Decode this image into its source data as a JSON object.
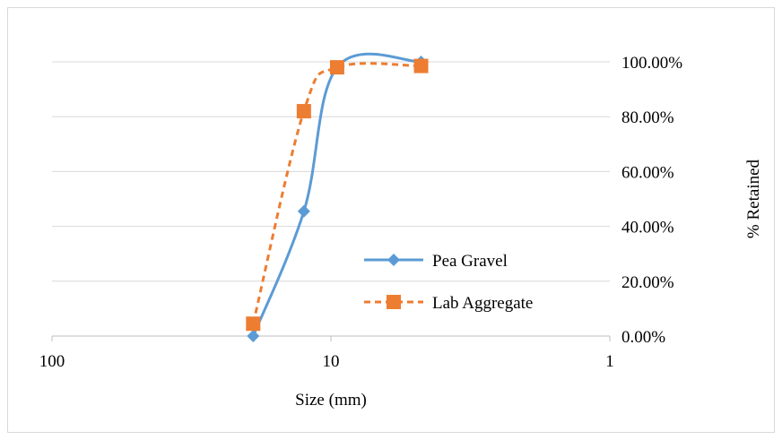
{
  "chart_data": {
    "type": "line",
    "xlabel": "Size (mm)",
    "ylabel": "% Retained",
    "x_scale": "log",
    "x_reversed": true,
    "xlim": [
      100,
      1
    ],
    "ylim": [
      0,
      1
    ],
    "x_ticks": [
      {
        "value": 100,
        "label": "100"
      },
      {
        "value": 10,
        "label": "10"
      },
      {
        "value": 1,
        "label": "1"
      }
    ],
    "y_ticks": [
      {
        "value": 0.0,
        "label": "0.00%"
      },
      {
        "value": 0.2,
        "label": "20.00%"
      },
      {
        "value": 0.4,
        "label": "40.00%"
      },
      {
        "value": 0.6,
        "label": "60.00%"
      },
      {
        "value": 0.8,
        "label": "80.00%"
      },
      {
        "value": 1.0,
        "label": "100.00%"
      }
    ],
    "y_axis_side": "right",
    "grid": {
      "horizontal": true,
      "vertical": false
    },
    "legend_position": "lower-right inside",
    "series": [
      {
        "name": "Pea Gravel",
        "color": "#5b9bd5",
        "line_style": "solid",
        "marker": "diamond",
        "smooth": true,
        "points": [
          {
            "x": 19,
            "y": 0.0
          },
          {
            "x": 12.5,
            "y": 0.455
          },
          {
            "x": 9.5,
            "y": 0.98
          },
          {
            "x": 4.75,
            "y": 1.0
          }
        ]
      },
      {
        "name": "Lab Aggregate",
        "color": "#ed7d31",
        "line_style": "dashed",
        "marker": "square",
        "smooth": true,
        "points": [
          {
            "x": 19,
            "y": 0.045
          },
          {
            "x": 12.5,
            "y": 0.82
          },
          {
            "x": 9.5,
            "y": 0.98
          },
          {
            "x": 4.75,
            "y": 0.985
          }
        ]
      }
    ]
  }
}
